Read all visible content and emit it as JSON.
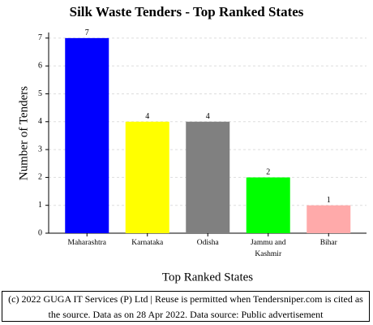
{
  "chart_data": {
    "type": "bar",
    "title": "Silk Waste Tenders - Top Ranked States",
    "x_label": "Top Ranked States",
    "y_label": "Number of Tenders",
    "categories": [
      "Maharashtra",
      "Karnataka",
      "Odisha",
      "Jammu and Kashmir",
      "Bihar"
    ],
    "values": [
      7,
      4,
      4,
      2,
      1
    ],
    "colors": [
      "#0000ff",
      "#ffff00",
      "#808080",
      "#00ff00",
      "#ffaaaa"
    ],
    "ylim": [
      0,
      7.2
    ],
    "yticks": [
      0,
      1,
      2,
      3,
      4,
      5,
      6,
      7
    ],
    "grid": true,
    "footer": "(c) 2022 GUGA IT Services (P) Ltd | Reuse is permitted when Tendersniper.com is cited as the source. Data as on 28 Apr 2022. Data source: Public advertisement"
  }
}
